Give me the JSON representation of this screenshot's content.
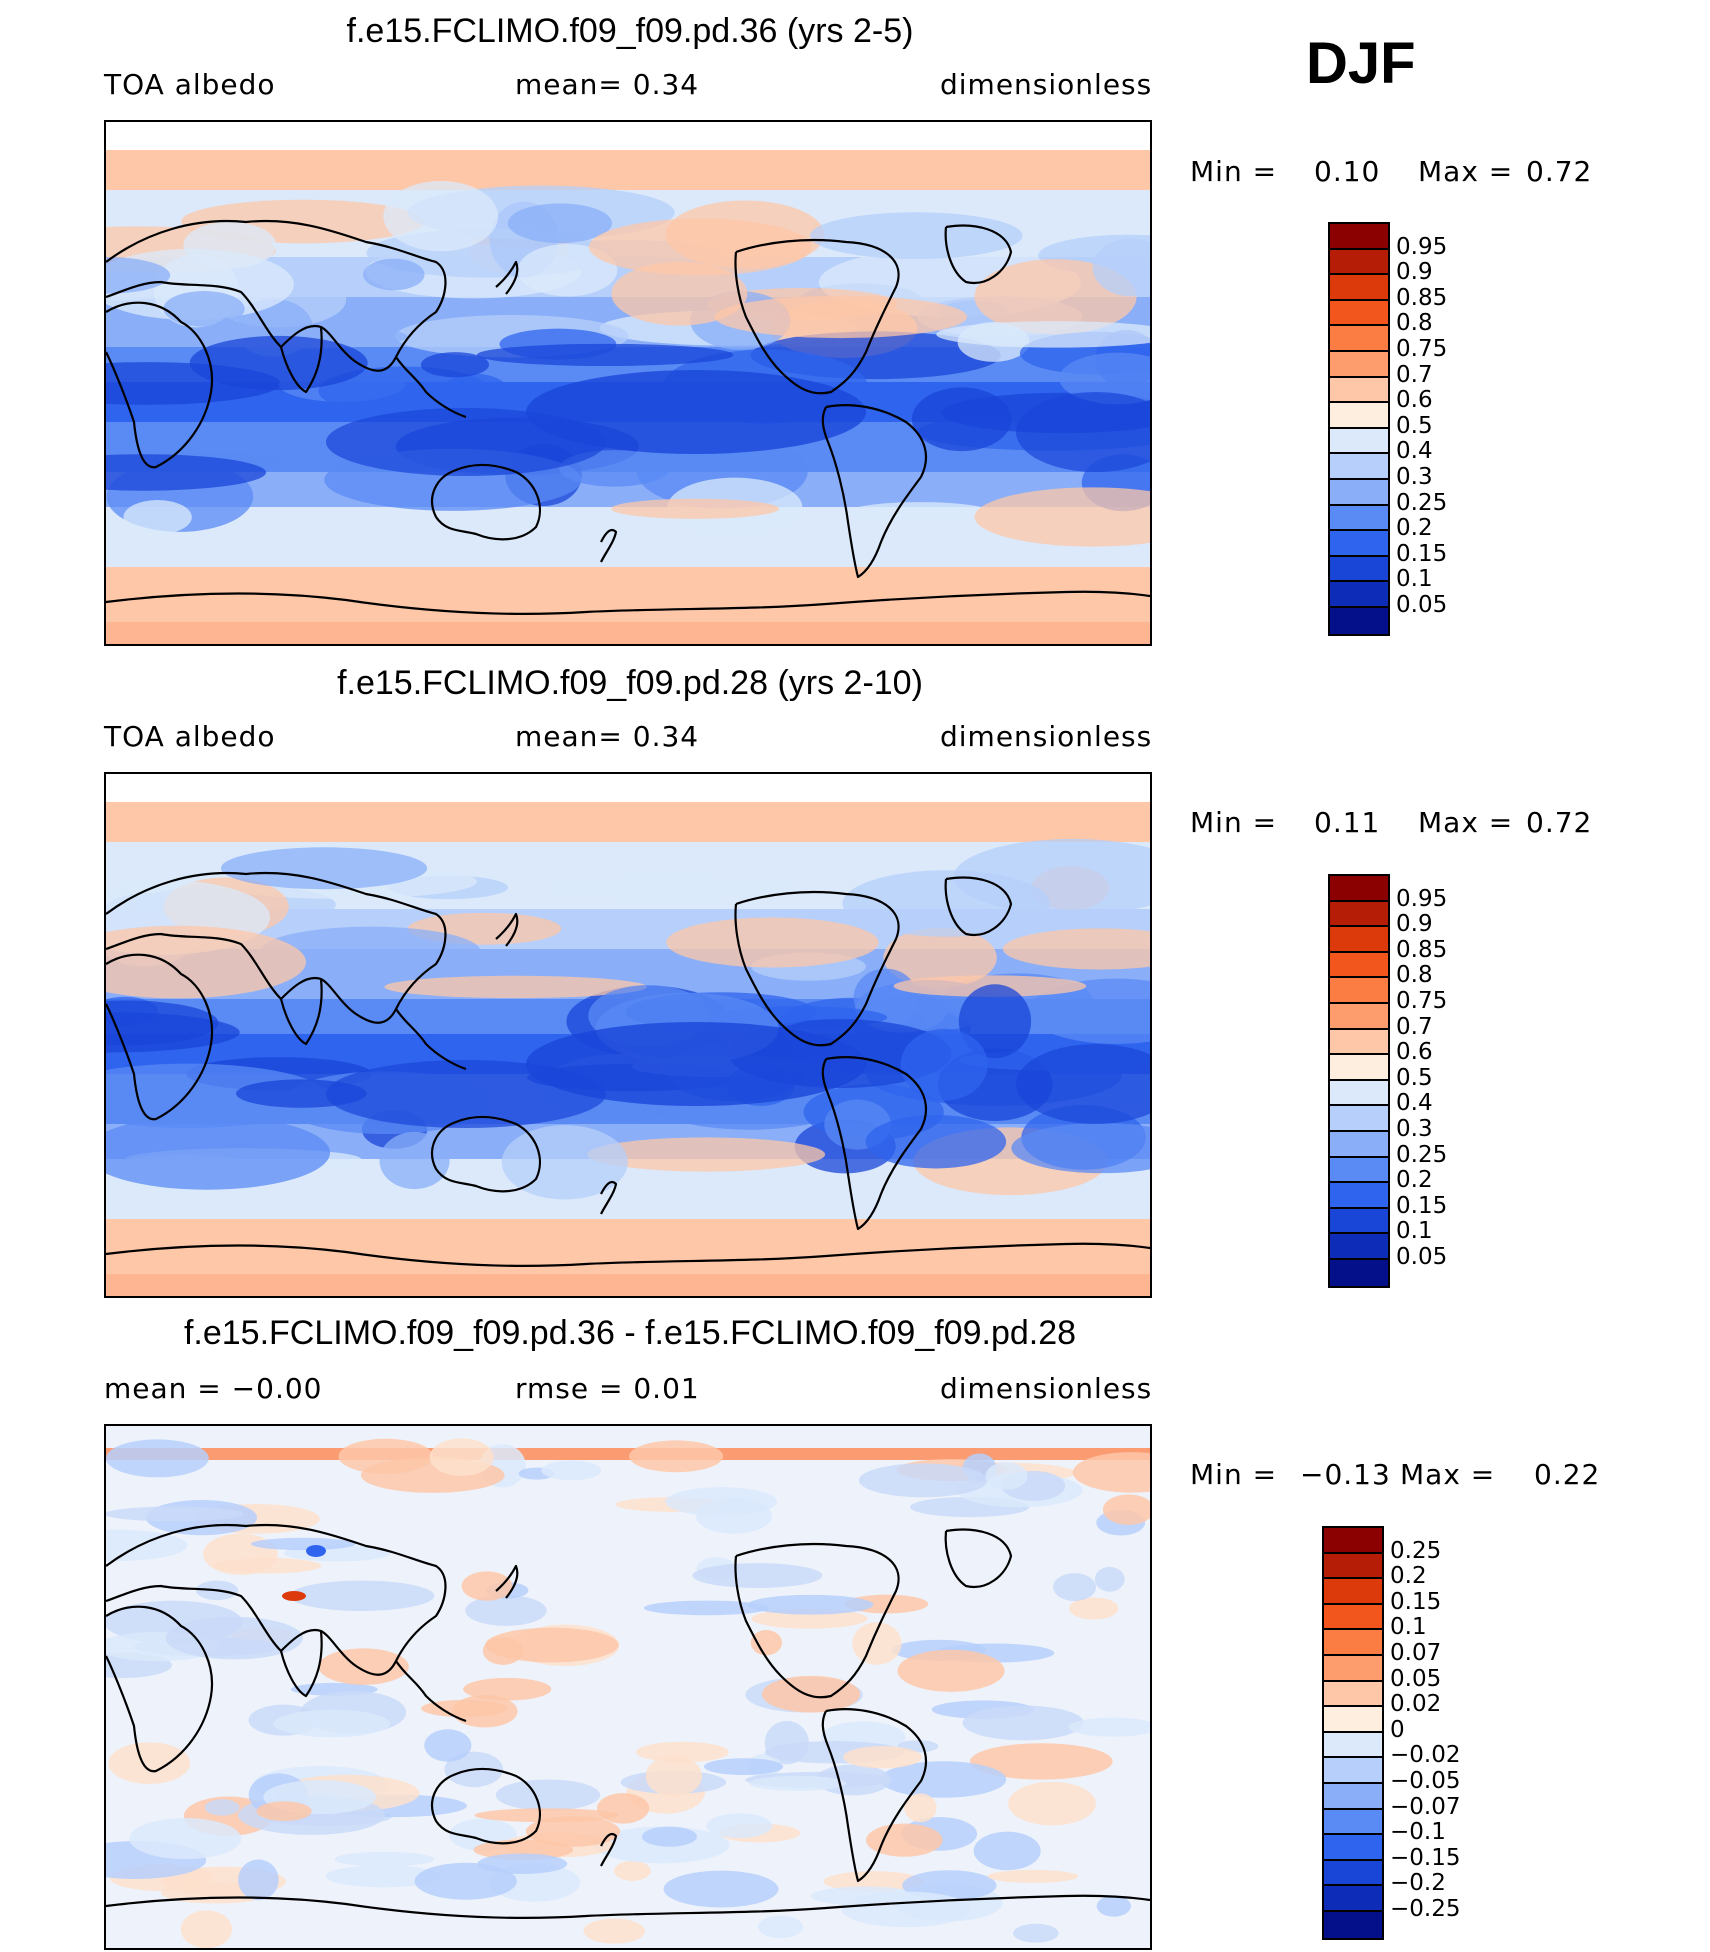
{
  "season": "DJF",
  "panels": [
    {
      "title": "f.e15.FCLIMO.f09_f09.pd.36 (yrs 2-5)",
      "left_label": "TOA  albedo",
      "mid_label": "mean=     0.34",
      "right_label": "dimensionless",
      "min_label": "Min  =",
      "min_value": "0.10",
      "max_label": "Max  =",
      "max_value": "0.72",
      "colorbar": {
        "labels": [
          "0.95",
          "0.9",
          "0.85",
          "0.8",
          "0.75",
          "0.7",
          "0.6",
          "0.5",
          "0.4",
          "0.3",
          "0.25",
          "0.2",
          "0.15",
          "0.1",
          "0.05"
        ],
        "colors": [
          "#8b0000",
          "#b51d06",
          "#dd3a0b",
          "#f2561d",
          "#fb7d44",
          "#fd9d6e",
          "#fdc7a8",
          "#fdeee0",
          "#dbe9fb",
          "#b6cffb",
          "#8aaff8",
          "#5a8af4",
          "#2f64ee",
          "#1a46d8",
          "#0d2db8",
          "#04108a"
        ]
      },
      "map_variant": "base"
    },
    {
      "title": "f.e15.FCLIMO.f09_f09.pd.28 (yrs 2-10)",
      "left_label": "TOA  albedo",
      "mid_label": "mean=     0.34",
      "right_label": "dimensionless",
      "min_label": "Min  =",
      "min_value": "0.11",
      "max_label": "Max  =",
      "max_value": "0.72",
      "colorbar": {
        "labels": [
          "0.95",
          "0.9",
          "0.85",
          "0.8",
          "0.75",
          "0.7",
          "0.6",
          "0.5",
          "0.4",
          "0.3",
          "0.25",
          "0.2",
          "0.15",
          "0.1",
          "0.05"
        ],
        "colors": [
          "#8b0000",
          "#b51d06",
          "#dd3a0b",
          "#f2561d",
          "#fb7d44",
          "#fd9d6e",
          "#fdc7a8",
          "#fdeee0",
          "#dbe9fb",
          "#b6cffb",
          "#8aaff8",
          "#5a8af4",
          "#2f64ee",
          "#1a46d8",
          "#0d2db8",
          "#04108a"
        ]
      },
      "map_variant": "base"
    },
    {
      "title": "f.e15.FCLIMO.f09_f09.pd.36 - f.e15.FCLIMO.f09_f09.pd.28",
      "left_label": "mean  =    −0.00",
      "mid_label": "rmse  =     0.01",
      "right_label": "dimensionless",
      "min_label": "Min  =",
      "min_value": "−0.13",
      "max_label": "Max  =",
      "max_value": "0.22",
      "colorbar": {
        "labels": [
          "0.25",
          "0.2",
          "0.15",
          "0.1",
          "0.07",
          "0.05",
          "0.02",
          "0",
          "−0.02",
          "−0.05",
          "−0.07",
          "−0.1",
          "−0.15",
          "−0.2",
          "−0.25"
        ],
        "colors": [
          "#8b0000",
          "#b51d06",
          "#dd3a0b",
          "#f2561d",
          "#fb7d44",
          "#fd9d6e",
          "#fdc7a8",
          "#fdeee0",
          "#dbe9fb",
          "#b6cffb",
          "#8aaff8",
          "#5a8af4",
          "#2f64ee",
          "#1a46d8",
          "#0d2db8",
          "#04108a"
        ]
      },
      "map_variant": "diff"
    }
  ]
}
